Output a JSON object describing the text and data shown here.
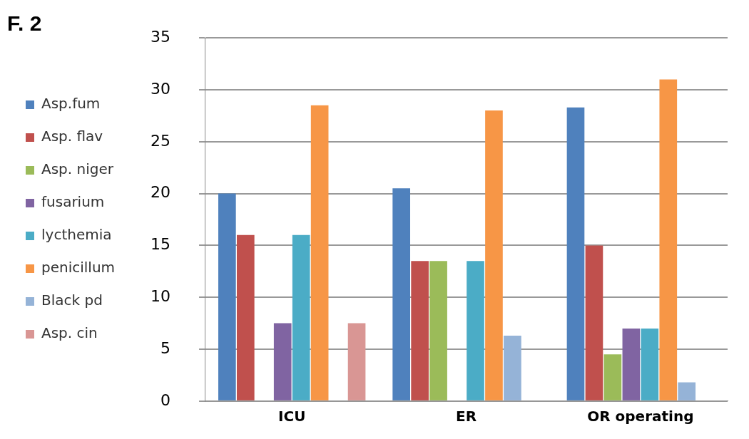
{
  "chart_data": {
    "type": "bar",
    "title": "F. 2",
    "categories": [
      "ICU",
      "ER",
      "OR operating"
    ],
    "series": [
      {
        "name": "Asp.fum",
        "color": "#4f81bd",
        "values": [
          20,
          20.5,
          28.3
        ]
      },
      {
        "name": "Asp. flav",
        "color": "#c0504d",
        "values": [
          16,
          13.5,
          15
        ]
      },
      {
        "name": "Asp. niger",
        "color": "#9bbb59",
        "values": [
          0,
          13.5,
          4.5
        ]
      },
      {
        "name": "fusarium",
        "color": "#8064a2",
        "values": [
          7.5,
          0,
          7
        ]
      },
      {
        "name": "lycthemia",
        "color": "#4bacc6",
        "values": [
          16,
          13.5,
          7
        ]
      },
      {
        "name": "penicillum",
        "color": "#f79646",
        "values": [
          28.5,
          28,
          31
        ]
      },
      {
        "name": "Black pd",
        "color": "#95b3d7",
        "values": [
          0,
          6.3,
          1.8
        ]
      },
      {
        "name": "Asp. cin",
        "color": "#d99694",
        "values": [
          7.5,
          0,
          0
        ]
      }
    ],
    "ylim": [
      0,
      35
    ],
    "yticks": [
      0,
      5,
      10,
      15,
      20,
      25,
      30,
      35
    ],
    "grid": "y",
    "legend": "left"
  }
}
